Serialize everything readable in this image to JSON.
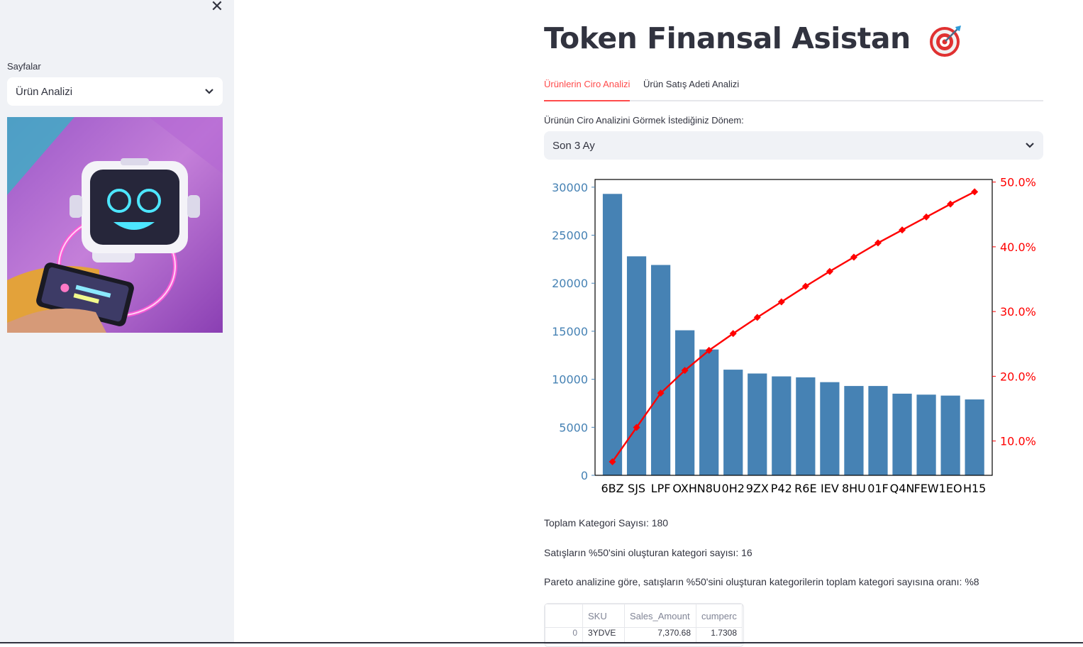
{
  "sidebar": {
    "close_icon": "close-icon",
    "pages_label": "Sayfalar",
    "pages_selected": "Ürün Analizi"
  },
  "header": {
    "title": "Token Finansal Asistan",
    "title_icon": "target-icon"
  },
  "tabs": [
    {
      "label": "Ürünlerin Ciro Analizi",
      "active": true
    },
    {
      "label": "Ürün Satış Adeti Analizi",
      "active": false
    }
  ],
  "period": {
    "label": "Ürünün Ciro Analizini Görmek İstediğiniz Dönem:",
    "selected": "Son 3 Ay"
  },
  "colors": {
    "bar": "#4682b4",
    "line": "#ff0000",
    "accent": "#ff4b4b"
  },
  "chart_data": {
    "type": "bar",
    "categories": [
      "6BZ",
      "SJS",
      "LPF",
      "OXH",
      "N8U",
      "0H2",
      "9ZX",
      "P42",
      "R6E",
      "IEV",
      "8HU",
      "01F",
      "Q4N",
      "FEW",
      "1EO",
      "H15"
    ],
    "values": [
      29300,
      22800,
      21900,
      15100,
      13100,
      11000,
      10600,
      10300,
      10200,
      9700,
      9300,
      9300,
      8500,
      8400,
      8300,
      7900
    ],
    "ylim": [
      0,
      30800
    ],
    "yticks": [
      "0",
      "5000",
      "10000",
      "15000",
      "20000",
      "25000",
      "30000"
    ],
    "series": [
      {
        "axis": "right",
        "type": "line",
        "values": [
          6.8,
          12.1,
          17.4,
          20.9,
          24.0,
          26.6,
          29.1,
          31.5,
          33.9,
          36.2,
          38.4,
          40.6,
          42.6,
          44.6,
          46.6,
          48.5
        ]
      }
    ],
    "y2lim": [
      4.7,
      50.4
    ],
    "y2ticks": [
      "10.0%",
      "20.0%",
      "30.0%",
      "40.0%",
      "50.0%"
    ]
  },
  "stats": {
    "total": "Toplam Kategori Sayısı: 180",
    "half": "Satışların %50'sini oluşturan kategori sayısı: 16",
    "ratio": "Pareto analizine göre, satışların %50'sini oluşturan kategorilerin toplam kategori sayısına oranı: %8"
  },
  "table": {
    "headers": [
      "",
      "SKU",
      "Sales_Amount",
      "cumperc"
    ],
    "rows": [
      [
        "0",
        "3YDVE",
        "7,370.68",
        "1.7308"
      ]
    ]
  }
}
